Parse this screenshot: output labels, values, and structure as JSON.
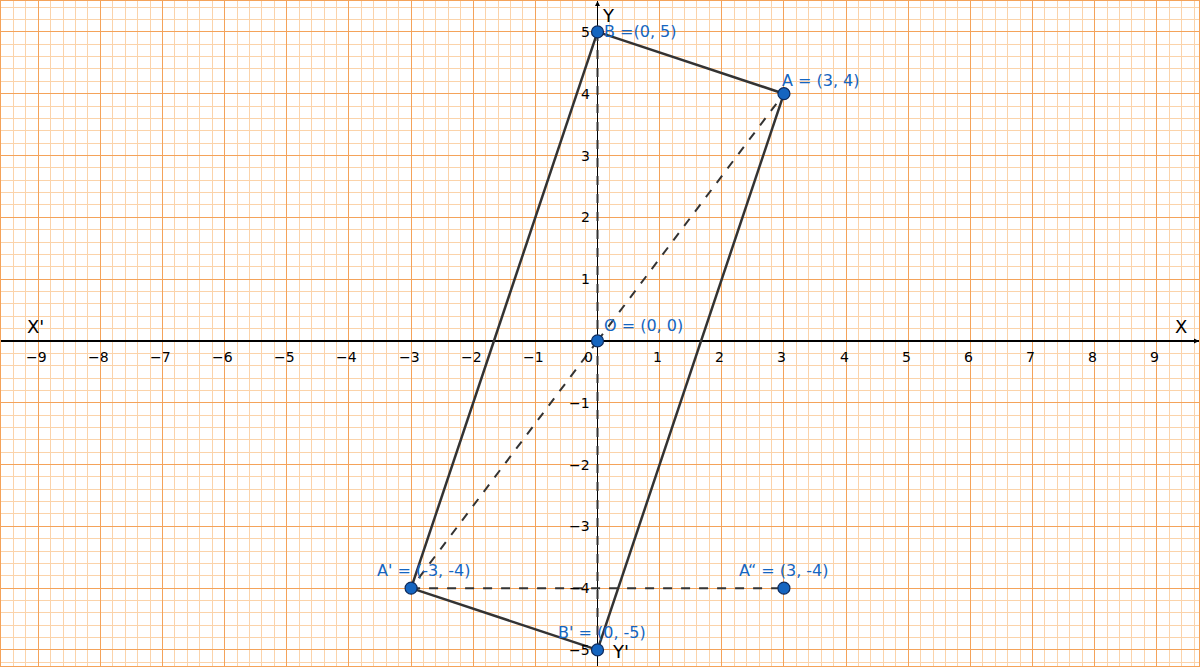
{
  "chart_data": {
    "type": "scatter",
    "color": "#1565c0",
    "grid": true,
    "xlim": [
      -9.6,
      9.68
    ],
    "ylim": [
      -5.26,
      5.5
    ],
    "xticks": [
      {
        "value": -9,
        "label": "−9"
      },
      {
        "value": -8,
        "label": "−8"
      },
      {
        "value": -7,
        "label": "−7"
      },
      {
        "value": -6,
        "label": "−6"
      },
      {
        "value": -5,
        "label": "−5"
      },
      {
        "value": -4,
        "label": "−4"
      },
      {
        "value": -3,
        "label": "−3"
      },
      {
        "value": -2,
        "label": "−2"
      },
      {
        "value": -1,
        "label": "−1"
      },
      0,
      1,
      2,
      3,
      4,
      5,
      6,
      7,
      8,
      9
    ],
    "yticks": [
      {
        "value": -5,
        "label": "−5"
      },
      {
        "value": -4,
        "label": "−4"
      },
      {
        "value": -3,
        "label": "−3"
      },
      {
        "value": -2,
        "label": "−2"
      },
      {
        "value": -1,
        "label": "−1"
      },
      1,
      2,
      3,
      4,
      5
    ],
    "axis_labels": {
      "x_negative": "X'",
      "x_positive": "X",
      "y_positive": "Y",
      "y_negative": "Y'"
    },
    "points": [
      {
        "name": "B",
        "x": 0,
        "y": 5,
        "label": "B =(0, 5)"
      },
      {
        "name": "A",
        "x": 3,
        "y": 4,
        "label": "A = (3, 4)"
      },
      {
        "name": "O",
        "x": 0,
        "y": 0,
        "label": "O = (0, 0)"
      },
      {
        "name": "A'",
        "x": -3,
        "y": -4,
        "label": "A' = (-3, -4)"
      },
      {
        "name": "A“",
        "x": 3,
        "y": -4,
        "label": "A“ = (3, -4)"
      },
      {
        "name": "B'",
        "x": 0,
        "y": -5,
        "label": "B' = (0, -5)"
      }
    ],
    "segments": [
      {
        "from": "B",
        "to": "A",
        "line_style": "solid"
      },
      {
        "from": "A",
        "to": "B'",
        "line_style": "solid"
      },
      {
        "from": "B'",
        "to": "A'",
        "line_style": "solid"
      },
      {
        "from": "A'",
        "to": "B",
        "line_style": "solid"
      },
      {
        "from": "O",
        "to": "A",
        "line_style": "dashed"
      },
      {
        "from": "O",
        "to": "A'",
        "line_style": "dashed"
      },
      {
        "from": "B",
        "to": "B'",
        "line_style": "dashed"
      },
      {
        "from": "A'",
        "to": "A“",
        "line_style": "dashed"
      }
    ]
  }
}
